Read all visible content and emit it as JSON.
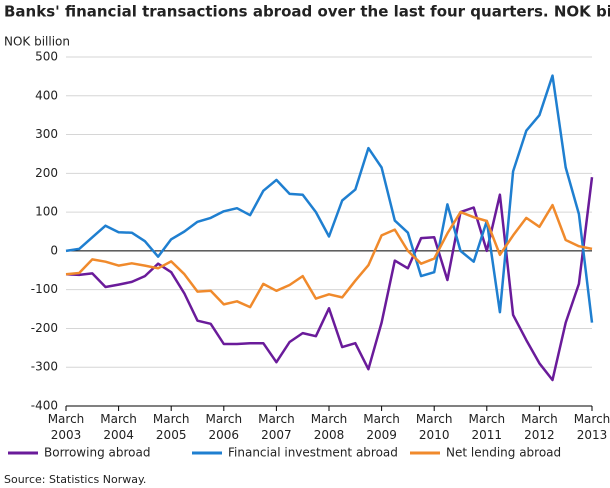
{
  "chart_data": {
    "type": "line",
    "title": "Banks' financial transactions abroad over the last four quarters. NOK billion",
    "y_label": "NOK billion",
    "source": "Source: Statistics Norway.",
    "categories": [
      "March 2003",
      null,
      null,
      null,
      "March 2004",
      null,
      null,
      null,
      "March 2005",
      null,
      null,
      null,
      "March 2006",
      null,
      null,
      null,
      "March 2007",
      null,
      null,
      null,
      "March 2008",
      null,
      null,
      null,
      "March 2009",
      null,
      null,
      null,
      "March 2010",
      null,
      null,
      null,
      "March 2011",
      null,
      null,
      null,
      "March 2012",
      null,
      null,
      null,
      "March 2013"
    ],
    "series": [
      {
        "name": "Borrowing abroad",
        "color": "#6a1b9a",
        "values": [
          -60,
          -62,
          -58,
          -93,
          -87,
          -80,
          -65,
          -33,
          -55,
          -110,
          -180,
          -188,
          -240,
          -240,
          -238,
          -238,
          -287,
          -235,
          -212,
          -220,
          -148,
          -248,
          -238,
          -305,
          -185,
          -25,
          -45,
          33,
          35,
          -75,
          100,
          112,
          0,
          145,
          -165,
          -230,
          -290,
          -333,
          -185,
          -85,
          190
        ]
      },
      {
        "name": "Financial investment abroad",
        "color": "#1f7fd0",
        "values": [
          0,
          5,
          35,
          65,
          48,
          47,
          25,
          -15,
          30,
          50,
          75,
          85,
          102,
          110,
          92,
          155,
          183,
          147,
          145,
          100,
          37,
          130,
          158,
          265,
          215,
          78,
          47,
          -65,
          -55,
          120,
          0,
          -28,
          77,
          -158,
          205,
          310,
          350,
          452,
          215,
          95,
          -185
        ]
      },
      {
        "name": "Net lending abroad",
        "color": "#f08a2c",
        "values": [
          -60,
          -57,
          -22,
          -28,
          -38,
          -32,
          -38,
          -45,
          -27,
          -60,
          -105,
          -103,
          -138,
          -130,
          -145,
          -85,
          -103,
          -88,
          -65,
          -123,
          -112,
          -120,
          -77,
          -37,
          40,
          55,
          0,
          -33,
          -20,
          45,
          100,
          87,
          77,
          -10,
          40,
          85,
          62,
          118,
          28,
          12,
          5
        ]
      }
    ],
    "ylim": [
      -400,
      500
    ],
    "yticks": [
      -400,
      -300,
      -200,
      -100,
      0,
      100,
      200,
      300,
      400,
      500
    ],
    "grid": true
  }
}
